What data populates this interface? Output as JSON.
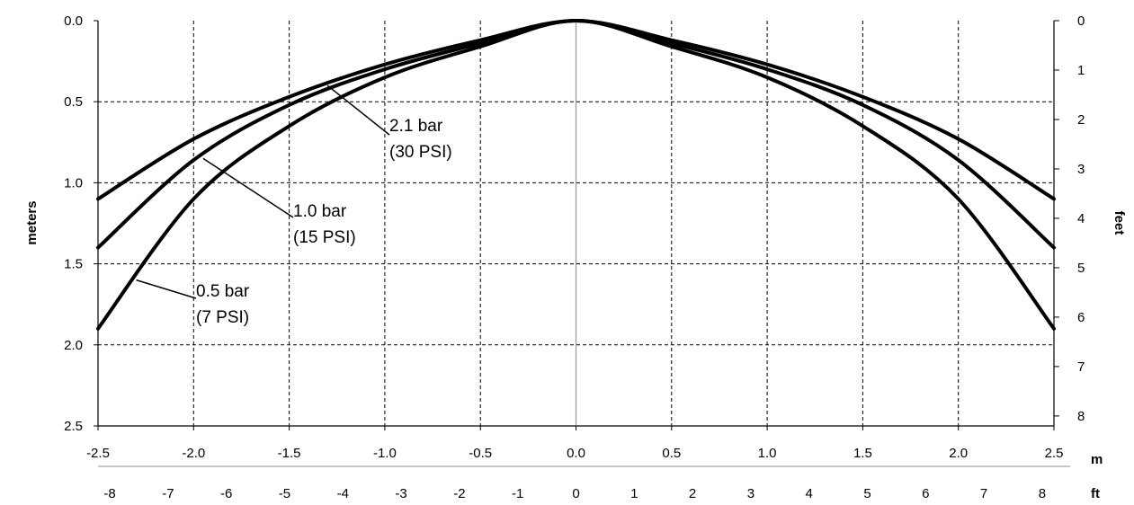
{
  "chart_data": {
    "type": "line",
    "title": "",
    "xlabel": "",
    "ylabel": "meters",
    "ylabel_right": "feet",
    "x_unit": "m",
    "x2_unit": "ft",
    "xlim": [
      -2.5,
      2.5
    ],
    "ylim": [
      0,
      2.5
    ],
    "y_inverted": true,
    "grid": true,
    "legend": "none",
    "x_ticks": [
      "-2.5",
      "-2.0",
      "-1.5",
      "-1.0",
      "-0.5",
      "0.0",
      "0.5",
      "1.0",
      "1.5",
      "2.0",
      "2.5"
    ],
    "x2_ticks": [
      "-8",
      "-7",
      "-6",
      "-5",
      "-4",
      "-3",
      "-2",
      "-1",
      "0",
      "1",
      "2",
      "3",
      "4",
      "5",
      "6",
      "7",
      "8"
    ],
    "y_ticks": [
      "0.0",
      "0.5",
      "1.0",
      "1.5",
      "2.0",
      "2.5"
    ],
    "y2_ticks": [
      "0",
      "1",
      "2",
      "3",
      "4",
      "5",
      "6",
      "7",
      "8"
    ],
    "x": [
      -2.5,
      -2.0,
      -1.5,
      -1.0,
      -0.5,
      0.0,
      0.5,
      1.0,
      1.5,
      2.0,
      2.5
    ],
    "series": [
      {
        "values": [
          1.1,
          0.73,
          0.47,
          0.27,
          0.12,
          0.0,
          0.12,
          0.27,
          0.47,
          0.73,
          1.1
        ]
      },
      {
        "values": [
          1.4,
          0.86,
          0.52,
          0.3,
          0.14,
          0.0,
          0.14,
          0.3,
          0.52,
          0.86,
          1.4
        ]
      },
      {
        "values": [
          1.9,
          1.1,
          0.65,
          0.35,
          0.16,
          0.0,
          0.16,
          0.35,
          0.65,
          1.1,
          1.9
        ]
      }
    ],
    "annotations": [
      {
        "lines": [
          "2.1 bar",
          "(30 PSI)"
        ],
        "point": [
          -1.3,
          0.4
        ]
      },
      {
        "lines": [
          "1.0 bar",
          "(15 PSI)"
        ],
        "point": [
          -1.95,
          0.85
        ]
      },
      {
        "lines": [
          "0.5 bar",
          "(7 PSI)"
        ],
        "point": [
          -2.3,
          1.6
        ]
      }
    ]
  }
}
